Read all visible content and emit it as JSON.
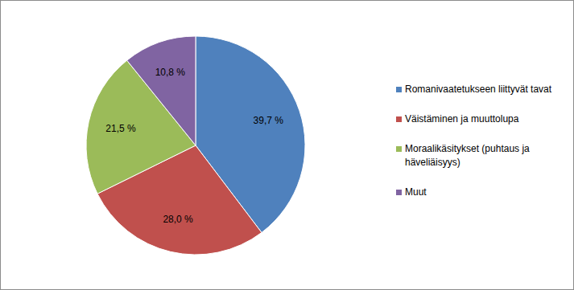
{
  "chart_data": {
    "type": "pie",
    "categories": [
      "Romanivaatetukseen liittyvät tavat",
      "Väistäminen ja muuttolupa",
      "Moraalikäsitykset (puhtaus ja häveliäisyys)",
      "Muut"
    ],
    "values": [
      39.7,
      28.0,
      21.5,
      10.8
    ],
    "value_labels": [
      "39,7 %",
      "28,0 %",
      "21,5 %",
      "10,8 %"
    ],
    "colors": [
      "#4f81bd",
      "#c0504d",
      "#9bbb59",
      "#8064a2"
    ],
    "data_labels": true,
    "legend": "right"
  }
}
